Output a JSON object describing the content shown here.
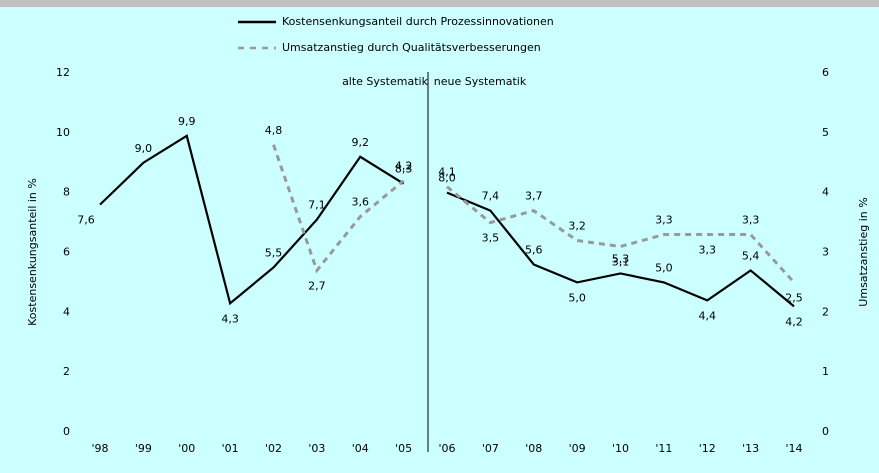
{
  "chart_data": {
    "type": "line",
    "categories": [
      "'98",
      "'99",
      "'00",
      "'01",
      "'02",
      "'03",
      "'04",
      "'05",
      "'06",
      "'07",
      "'08",
      "'09",
      "'10",
      "'11",
      "'12",
      "'13",
      "'14"
    ],
    "series": [
      {
        "name": "Kostensenkungsanteil durch Prozessinnovationen",
        "color": "#000000",
        "dashed": false,
        "values": [
          7.6,
          9.0,
          9.9,
          4.3,
          5.5,
          7.1,
          9.2,
          8.3,
          8.0,
          7.4,
          5.6,
          5.0,
          5.3,
          5.0,
          4.4,
          5.4,
          4.2
        ],
        "value_labels": [
          "7,6",
          "9,0",
          "9,9",
          "4,3",
          "5,5",
          "7,1",
          "9,2",
          "8,3",
          "8,0",
          "7,4",
          "5,6",
          "5,0",
          "5,3",
          "5,0",
          "4,4",
          "5,4",
          "4,2"
        ]
      },
      {
        "name": "Umsatzanstieg durch Qualitätsverbesserungen",
        "color": "#999999",
        "dashed": true,
        "axis": "y2",
        "values": [
          null,
          null,
          null,
          null,
          4.8,
          2.7,
          3.6,
          4.2,
          4.1,
          3.5,
          3.7,
          3.2,
          3.1,
          3.3,
          3.3,
          3.3,
          2.5
        ],
        "value_labels": [
          null,
          null,
          null,
          null,
          "4,8",
          "2,7",
          "3,6",
          "4,2",
          "4,1",
          "3,5",
          "3,7",
          "3,2",
          "3,1",
          "3,3",
          "3,3",
          "3,3",
          "2,5"
        ]
      }
    ],
    "ylabel": "Kostensenkungsanteil in %",
    "y2label": "Umsatzanstieg in %",
    "ylim": [
      0,
      12
    ],
    "yticks": [
      0,
      2,
      4,
      6,
      8,
      10,
      12
    ],
    "y2lim": [
      0,
      6
    ],
    "y2ticks": [
      0,
      1,
      2,
      3,
      4,
      5,
      6
    ],
    "annotations": [
      "alte Systematik",
      "neue Systematik"
    ]
  }
}
